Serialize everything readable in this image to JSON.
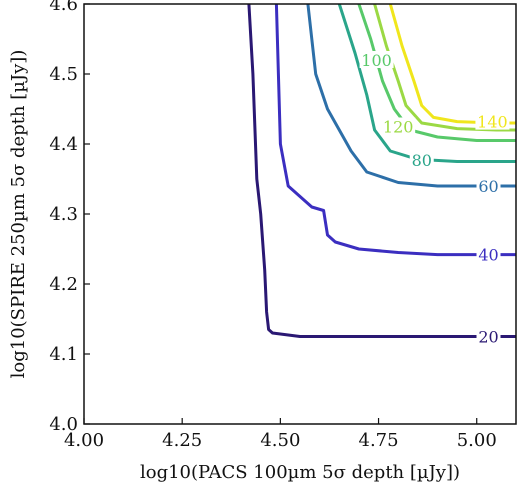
{
  "chart_data": {
    "type": "line",
    "subtype": "contour",
    "title": "",
    "xlabel": "log10(PACS 100µm 5σ depth [µJy])",
    "ylabel": "log10(SPIRE 250µm 5σ depth [µJy])",
    "xlim": [
      4.0,
      5.1
    ],
    "ylim": [
      4.0,
      4.6
    ],
    "x_ticks": [
      "4.00",
      "4.25",
      "4.50",
      "4.75",
      "5.00"
    ],
    "y_ticks": [
      "4.0",
      "4.1",
      "4.2",
      "4.3",
      "4.4",
      "4.5",
      "4.6"
    ],
    "grid": false,
    "legend": "none (inline contour labels)",
    "series": [
      {
        "label": "20",
        "color": "#2a1873",
        "x": [
          4.42,
          4.43,
          4.44,
          4.45,
          4.46,
          4.465,
          4.47,
          4.48,
          4.55,
          4.7,
          4.85,
          5.0,
          5.1
        ],
        "y": [
          4.6,
          4.5,
          4.35,
          4.3,
          4.22,
          4.16,
          4.135,
          4.13,
          4.125,
          4.125,
          4.125,
          4.125,
          4.125
        ],
        "label_at": [
          5.03,
          4.125
        ]
      },
      {
        "label": "40",
        "color": "#3b2ec0",
        "x": [
          4.49,
          4.495,
          4.5,
          4.52,
          4.58,
          4.61,
          4.62,
          4.64,
          4.7,
          4.8,
          4.9,
          5.0,
          5.1
        ],
        "y": [
          4.6,
          4.5,
          4.4,
          4.34,
          4.31,
          4.305,
          4.27,
          4.26,
          4.25,
          4.245,
          4.242,
          4.242,
          4.242
        ],
        "label_at": [
          5.03,
          4.242
        ]
      },
      {
        "label": "60",
        "color": "#2d6fa8",
        "x": [
          4.57,
          4.58,
          4.59,
          4.62,
          4.65,
          4.68,
          4.72,
          4.8,
          4.9,
          5.0,
          5.1
        ],
        "y": [
          4.6,
          4.55,
          4.5,
          4.45,
          4.42,
          4.39,
          4.36,
          4.345,
          4.34,
          4.34,
          4.34
        ],
        "label_at": [
          5.03,
          4.34
        ]
      },
      {
        "label": "80",
        "color": "#2aa58a",
        "x": [
          4.65,
          4.69,
          4.72,
          4.74,
          4.78,
          4.85,
          4.95,
          5.05,
          5.1
        ],
        "y": [
          4.6,
          4.53,
          4.47,
          4.42,
          4.39,
          4.378,
          4.375,
          4.375,
          4.375
        ],
        "label_at": [
          4.86,
          4.377
        ]
      },
      {
        "label": "100",
        "color": "#58c96a",
        "x": [
          4.7,
          4.73,
          4.76,
          4.79,
          4.83,
          4.9,
          5.0,
          5.1
        ],
        "y": [
          4.6,
          4.55,
          4.49,
          4.45,
          4.42,
          4.41,
          4.405,
          4.405
        ],
        "label_at": [
          4.745,
          4.52
        ]
      },
      {
        "label": "120",
        "color": "#9bd944",
        "x": [
          4.74,
          4.77,
          4.8,
          4.82,
          4.86,
          4.95,
          5.05,
          5.1
        ],
        "y": [
          4.6,
          4.54,
          4.49,
          4.455,
          4.43,
          4.422,
          4.42,
          4.42
        ],
        "label_at": [
          4.8,
          4.425
        ]
      },
      {
        "label": "140",
        "color": "#f0e61c",
        "x": [
          4.78,
          4.81,
          4.84,
          4.86,
          4.89,
          4.95,
          5.05,
          5.1
        ],
        "y": [
          4.6,
          4.54,
          4.49,
          4.455,
          4.438,
          4.432,
          4.43,
          4.43
        ],
        "label_at": [
          5.04,
          4.432
        ]
      }
    ]
  }
}
